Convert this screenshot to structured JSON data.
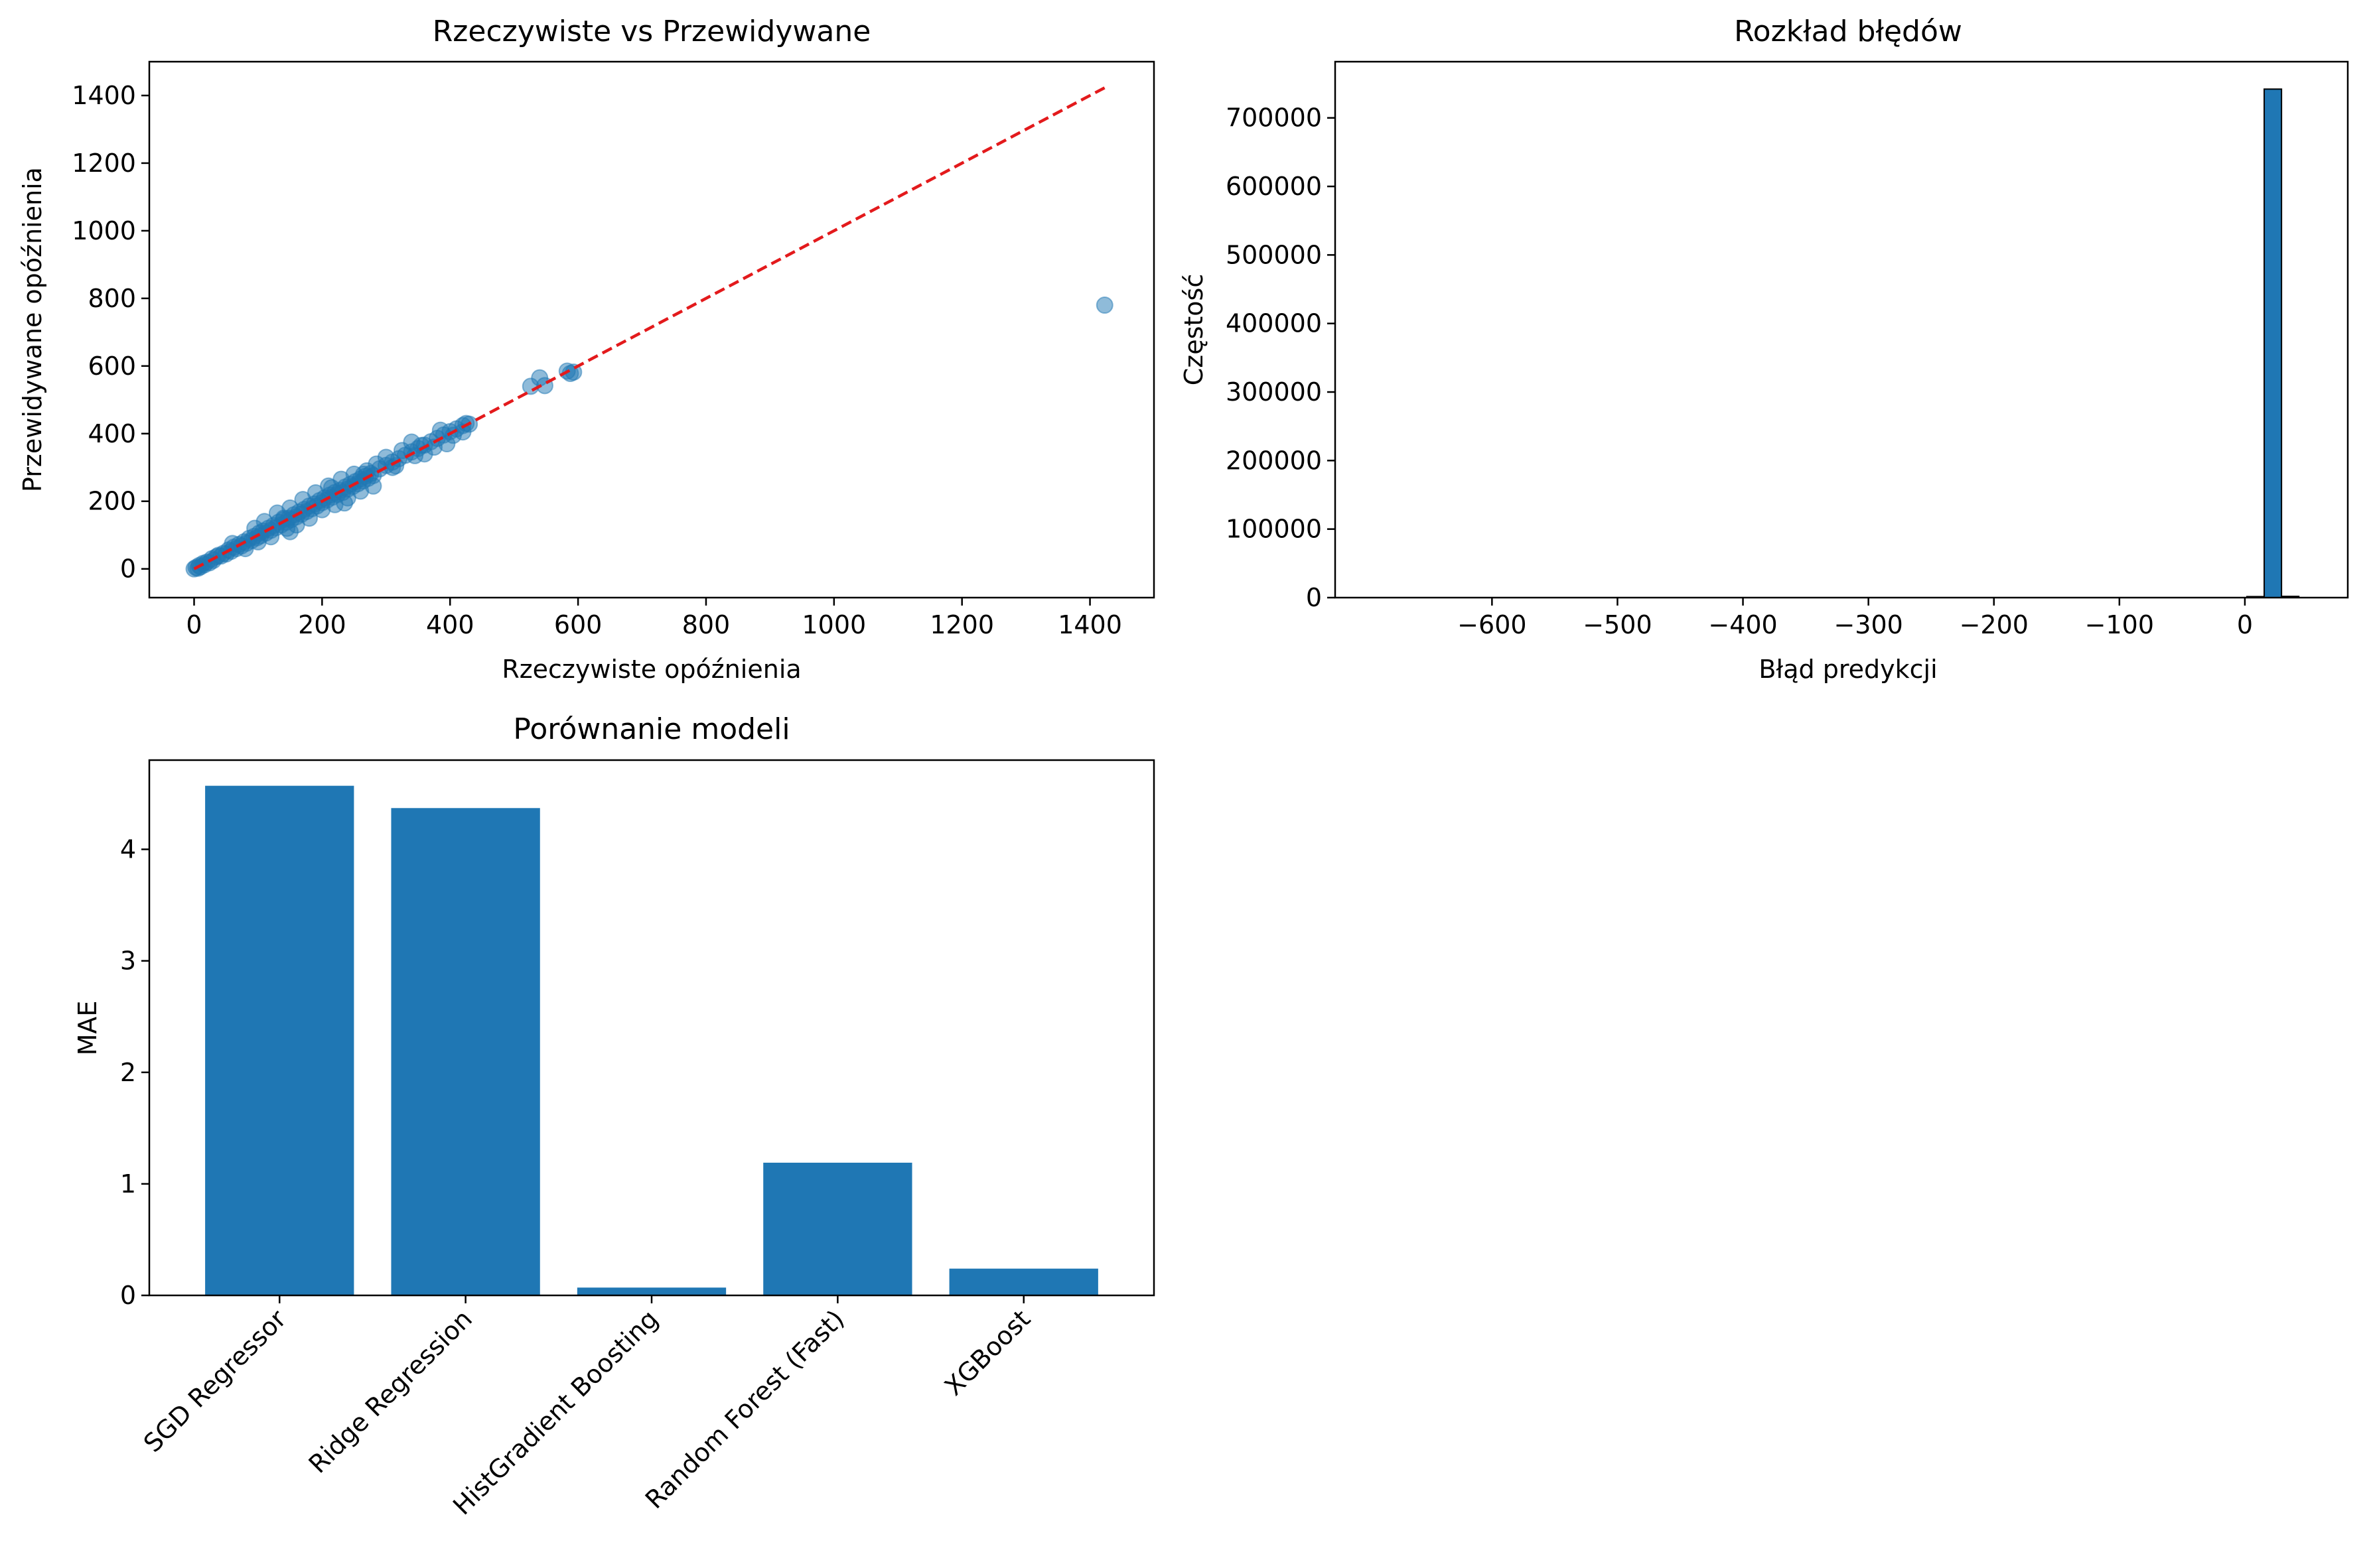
{
  "colors": {
    "primary": "#1f77b4",
    "reference": "#e31a1c",
    "edge": "#000000"
  },
  "chart_data": [
    {
      "type": "scatter",
      "title": "Rzeczywiste vs Przewidywane",
      "xlabel": "Rzeczywiste opóźnienia",
      "ylabel": "Przewidywane opóźnienia",
      "xlim": [
        -70,
        1500
      ],
      "ylim": [
        -85,
        1500
      ],
      "xticks": [
        0,
        200,
        400,
        600,
        800,
        1000,
        1200,
        1400
      ],
      "yticks": [
        0,
        200,
        400,
        600,
        800,
        1000,
        1200,
        1400
      ],
      "grid": false,
      "points": [
        [
          0,
          0
        ],
        [
          3,
          4
        ],
        [
          6,
          2
        ],
        [
          8,
          10
        ],
        [
          10,
          6
        ],
        [
          14,
          16
        ],
        [
          16,
          12
        ],
        [
          20,
          20
        ],
        [
          24,
          18
        ],
        [
          28,
          30
        ],
        [
          30,
          25
        ],
        [
          35,
          36
        ],
        [
          38,
          40
        ],
        [
          42,
          38
        ],
        [
          46,
          46
        ],
        [
          50,
          44
        ],
        [
          54,
          56
        ],
        [
          58,
          52
        ],
        [
          62,
          64
        ],
        [
          66,
          60
        ],
        [
          70,
          72
        ],
        [
          74,
          68
        ],
        [
          78,
          80
        ],
        [
          82,
          76
        ],
        [
          86,
          90
        ],
        [
          90,
          84
        ],
        [
          94,
          96
        ],
        [
          98,
          92
        ],
        [
          102,
          106
        ],
        [
          104,
          98
        ],
        [
          108,
          112
        ],
        [
          112,
          106
        ],
        [
          116,
          120
        ],
        [
          120,
          114
        ],
        [
          124,
          128
        ],
        [
          128,
          122
        ],
        [
          132,
          138
        ],
        [
          136,
          130
        ],
        [
          140,
          146
        ],
        [
          144,
          138
        ],
        [
          148,
          150
        ],
        [
          152,
          146
        ],
        [
          156,
          160
        ],
        [
          160,
          154
        ],
        [
          164,
          168
        ],
        [
          168,
          162
        ],
        [
          172,
          176
        ],
        [
          176,
          170
        ],
        [
          180,
          186
        ],
        [
          184,
          178
        ],
        [
          188,
          192
        ],
        [
          192,
          186
        ],
        [
          196,
          202
        ],
        [
          200,
          196
        ],
        [
          204,
          210
        ],
        [
          208,
          204
        ],
        [
          212,
          218
        ],
        [
          216,
          212
        ],
        [
          220,
          226
        ],
        [
          224,
          220
        ],
        [
          228,
          232
        ],
        [
          232,
          226
        ],
        [
          236,
          242
        ],
        [
          240,
          236
        ],
        [
          244,
          250
        ],
        [
          248,
          244
        ],
        [
          252,
          258
        ],
        [
          256,
          252
        ],
        [
          260,
          266
        ],
        [
          264,
          260
        ],
        [
          268,
          274
        ],
        [
          272,
          268
        ],
        [
          276,
          282
        ],
        [
          280,
          276
        ],
        [
          290,
          296
        ],
        [
          300,
          306
        ],
        [
          310,
          316
        ],
        [
          320,
          326
        ],
        [
          330,
          336
        ],
        [
          340,
          346
        ],
        [
          350,
          356
        ],
        [
          360,
          366
        ],
        [
          370,
          376
        ],
        [
          380,
          386
        ],
        [
          390,
          396
        ],
        [
          400,
          406
        ],
        [
          410,
          414
        ],
        [
          420,
          424
        ],
        [
          430,
          428
        ],
        [
          60,
          75
        ],
        [
          80,
          60
        ],
        [
          95,
          120
        ],
        [
          100,
          80
        ],
        [
          120,
          95
        ],
        [
          130,
          165
        ],
        [
          145,
          120
        ],
        [
          150,
          180
        ],
        [
          160,
          130
        ],
        [
          170,
          205
        ],
        [
          180,
          150
        ],
        [
          190,
          225
        ],
        [
          200,
          175
        ],
        [
          210,
          245
        ],
        [
          220,
          190
        ],
        [
          230,
          265
        ],
        [
          240,
          210
        ],
        [
          250,
          280
        ],
        [
          260,
          230
        ],
        [
          270,
          290
        ],
        [
          280,
          245
        ],
        [
          300,
          330
        ],
        [
          310,
          300
        ],
        [
          325,
          350
        ],
        [
          340,
          375
        ],
        [
          345,
          335
        ],
        [
          360,
          340
        ],
        [
          385,
          410
        ],
        [
          395,
          370
        ],
        [
          405,
          395
        ],
        [
          420,
          405
        ],
        [
          425,
          430
        ],
        [
          140,
          150
        ],
        [
          150,
          110
        ],
        [
          110,
          140
        ],
        [
          215,
          240
        ],
        [
          235,
          195
        ],
        [
          265,
          280
        ],
        [
          285,
          310
        ],
        [
          315,
          305
        ],
        [
          355,
          365
        ],
        [
          375,
          360
        ],
        [
          526,
          540
        ],
        [
          540,
          565
        ],
        [
          548,
          542
        ],
        [
          583,
          585
        ],
        [
          588,
          578
        ],
        [
          593,
          582
        ],
        [
          1423,
          780
        ]
      ],
      "reference_line": {
        "x": [
          0,
          1423
        ],
        "y": [
          0,
          1423
        ]
      }
    },
    {
      "type": "bar",
      "subtype": "histogram",
      "title": "Rozkład błędów",
      "xlabel": "Błąd predykcji",
      "ylabel": "Częstość",
      "xlim": [
        -725,
        82
      ],
      "ylim": [
        0,
        782000
      ],
      "xticks": [
        -600,
        -500,
        -400,
        -300,
        -200,
        -100,
        0
      ],
      "xtick_labels": [
        "−600",
        "−500",
        "−400",
        "−300",
        "−200",
        "−100",
        "0"
      ],
      "yticks": [
        0,
        100000,
        200000,
        300000,
        400000,
        500000,
        600000,
        700000
      ],
      "grid": false,
      "bin_start": -647,
      "bin_width": 13.8,
      "counts": [
        0,
        0,
        0,
        0,
        0,
        0,
        0,
        0,
        0,
        0,
        0,
        0,
        0,
        0,
        0,
        0,
        0,
        0,
        0,
        0,
        0,
        0,
        0,
        0,
        0,
        0,
        0,
        0,
        0,
        0,
        0,
        0,
        0,
        0,
        0,
        0,
        0,
        0,
        0,
        0,
        0,
        0,
        0,
        0,
        0,
        0,
        0,
        1500,
        742000,
        1800
      ]
    },
    {
      "type": "bar",
      "title": "Porównanie modeli",
      "xlabel": "",
      "ylabel": "MAE",
      "categories": [
        "SGD Regressor",
        "Ridge Regression",
        "HistGradient Boosting",
        "Random Forest (Fast)",
        "XGBoost"
      ],
      "values": [
        4.57,
        4.37,
        0.07,
        1.19,
        0.24
      ],
      "ylim": [
        0,
        4.8
      ],
      "yticks": [
        0,
        1,
        2,
        3,
        4
      ],
      "grid": false
    }
  ]
}
